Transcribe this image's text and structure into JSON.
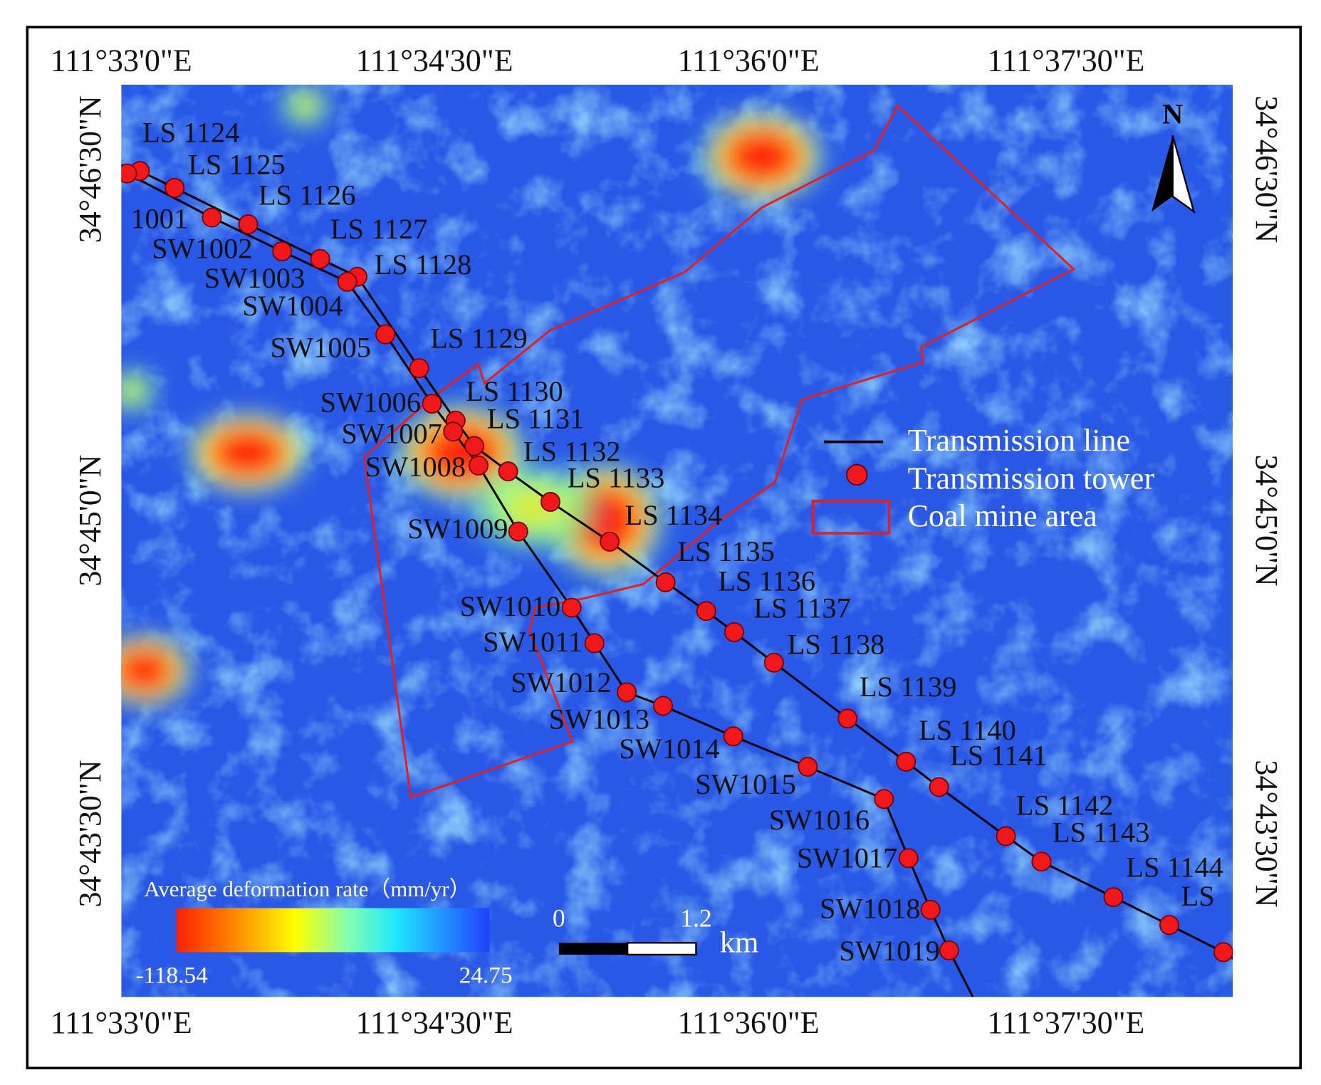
{
  "map": {
    "top_ticks": [
      "111°33'0\"E",
      "111°34'30\"E",
      "111°36'0\"E",
      "111°37'30\"E"
    ],
    "bottom_ticks": [
      "111°33'0\"E",
      "111°34'30\"E",
      "111°36'0\"E",
      "111°37'30\"E"
    ],
    "left_ticks": [
      "34°46'30\"N",
      "34°45'0\"N",
      "34°43'30\"N"
    ],
    "right_ticks": [
      "34°46'30\"N",
      "34°45'0\"N",
      "34°43'30\"N"
    ],
    "north": "N",
    "legend": [
      "Transmission line",
      "Transmission tower",
      "Coal mine area"
    ],
    "colorbar": {
      "title": "Average deformation rate（mm/yr）",
      "min": -118.54,
      "max": 24.75
    },
    "scale_bar": {
      "ticks": [
        0,
        1.2
      ],
      "unit": "km"
    },
    "ls_towers": [
      "LS 1124",
      "LS 1125",
      "LS 1126",
      "LS 1127",
      "LS 1128",
      "LS 1129",
      "LS 1130",
      "LS 1131",
      "LS 1132",
      "LS 1133",
      "LS 1134",
      "LS 1135",
      "LS 1136",
      "LS 1137",
      "LS 1138",
      "LS 1139",
      "LS 1140",
      "LS 1141",
      "LS 1142",
      "LS 1143",
      "LS 1144",
      "LS"
    ],
    "sw_towers": [
      "1001",
      "SW1002",
      "SW1003",
      "SW1004",
      "SW1005",
      "SW1006",
      "SW1007",
      "SW1008",
      "SW1009",
      "SW1010",
      "SW1011",
      "SW1012",
      "SW1013",
      "SW1014",
      "SW1015",
      "SW1016",
      "SW1017",
      "SW1018",
      "SW1019"
    ]
  }
}
